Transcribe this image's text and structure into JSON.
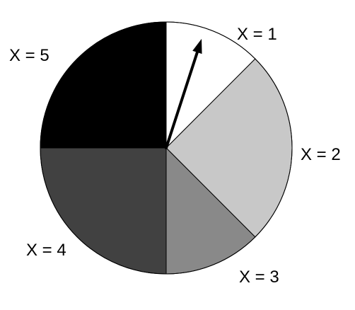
{
  "chart_data": {
    "type": "pie",
    "categories": [
      "X = 1",
      "X = 2",
      "X = 3",
      "X = 4",
      "X = 5"
    ],
    "values": [
      0.125,
      0.25,
      0.125,
      0.25,
      0.25
    ],
    "colors": [
      "#ffffff",
      "#c8c8c8",
      "#898989",
      "#414141",
      "#000000"
    ],
    "start": "top, clockwise",
    "pointer": {
      "type": "arrow",
      "position_fraction": 0.05,
      "color": "#000000"
    },
    "title": "",
    "legend": "none"
  }
}
